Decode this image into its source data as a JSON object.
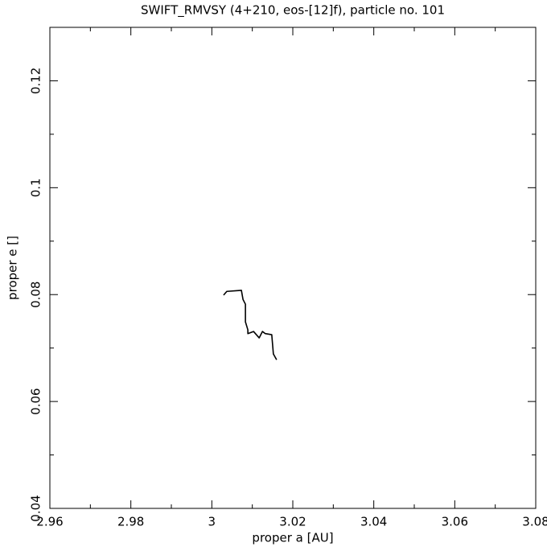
{
  "chart_data": {
    "type": "line",
    "title": "SWIFT_RMVSY (4+210, eos-[12]f), particle no. 101",
    "x_label": "proper a [AU]",
    "y_label": "proper e []",
    "x": [
      3.0029,
      3.0037,
      3.0073,
      3.0077,
      3.0083,
      3.0083,
      3.0089,
      3.0089,
      3.0103,
      3.0117,
      3.0125,
      3.0132,
      3.0148,
      3.0152,
      3.016
    ],
    "series": [
      {
        "name": "particle no. 101",
        "color": "#000000",
        "values": [
          0.0799,
          0.0806,
          0.0808,
          0.0791,
          0.0782,
          0.0749,
          0.0734,
          0.0727,
          0.0731,
          0.0719,
          0.0731,
          0.0727,
          0.0725,
          0.0689,
          0.0678
        ]
      }
    ],
    "xlim": [
      2.96,
      3.08
    ],
    "xticks": [
      2.96,
      2.98,
      3,
      3.02,
      3.04,
      3.06,
      3.08
    ],
    "ylim": [
      0.04,
      0.13
    ],
    "yticks": [
      0.04,
      0.06,
      0.08,
      0.1,
      0.12
    ],
    "grid": false
  }
}
